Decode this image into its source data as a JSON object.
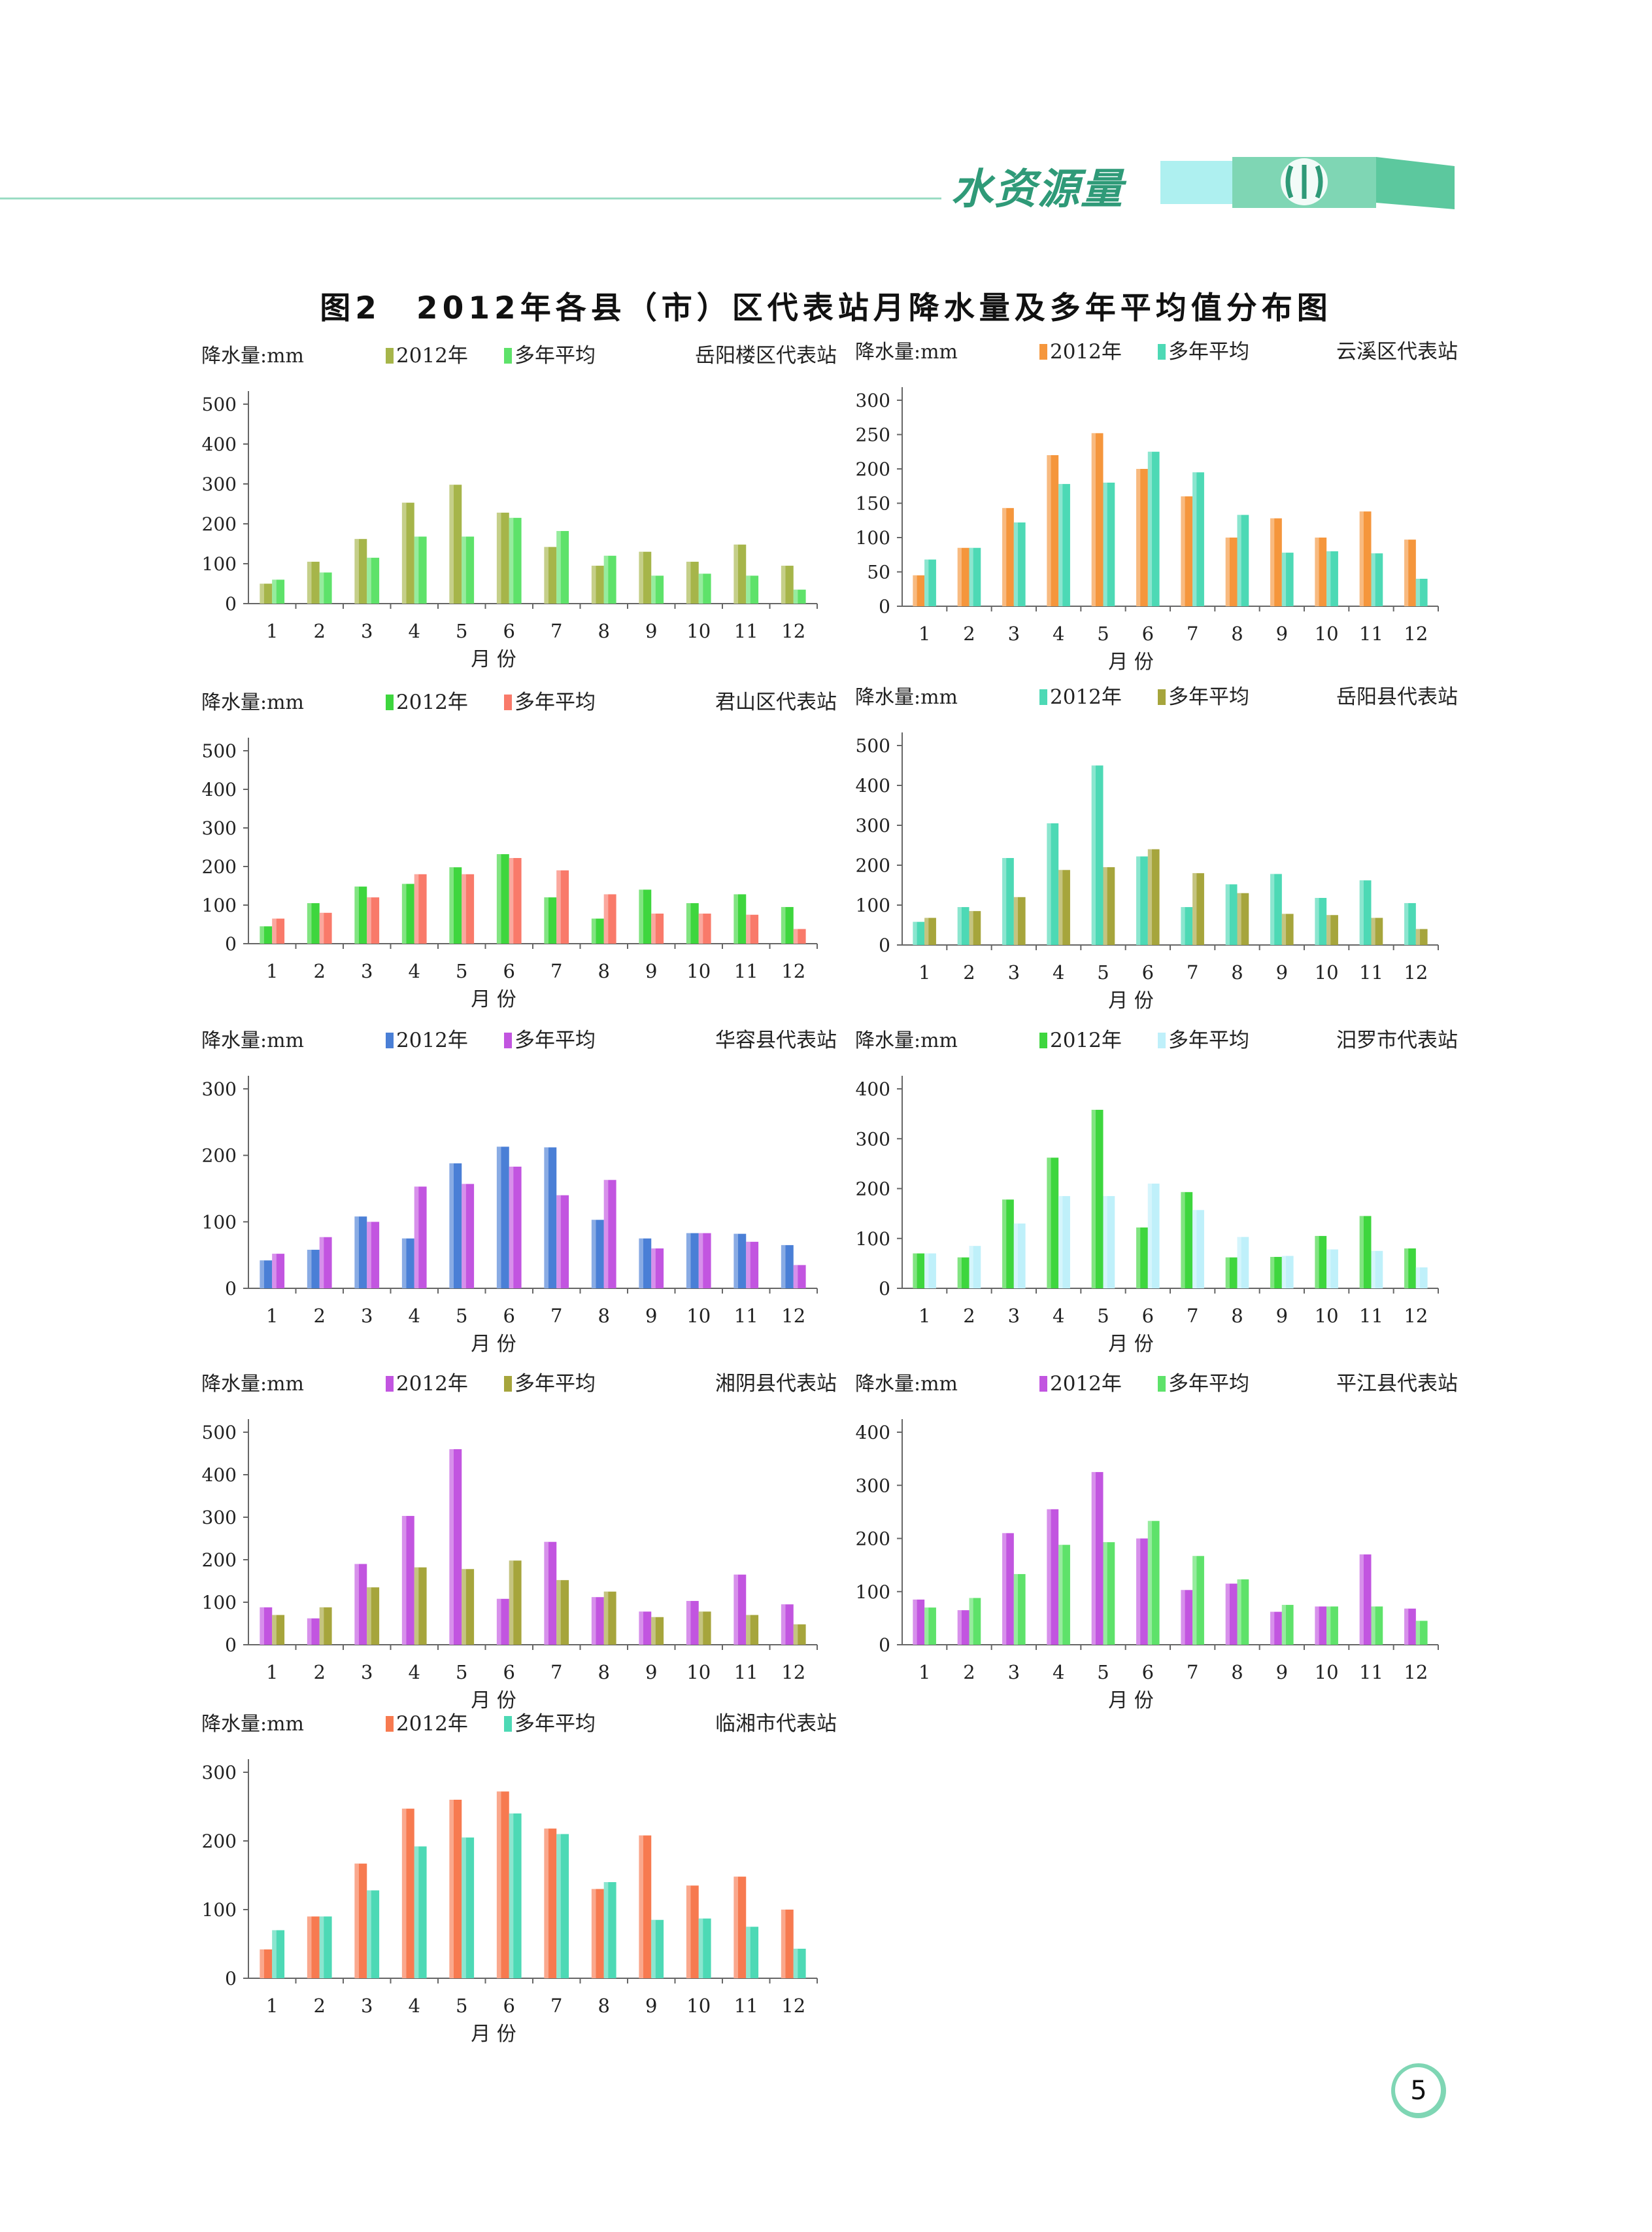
{
  "header": {
    "section_title": "水资源量"
  },
  "figure_title": "图2　2012年各县（市）区代表站月降水量及多年平均值分布图",
  "page_number": "5",
  "colors": {
    "header_accent": "#2f9a78",
    "header_band": "#7fd6b4",
    "header_band_light": "#aef0f0"
  },
  "chart_data": [
    {
      "type": "bar",
      "title": "岳阳楼区代表站",
      "ylabel": "降水量:mm",
      "xlabel": "月 份",
      "categories": [
        "1",
        "2",
        "3",
        "4",
        "5",
        "6",
        "7",
        "8",
        "9",
        "10",
        "11",
        "12"
      ],
      "ylim": [
        0,
        500
      ],
      "yticks": [
        0,
        100,
        200,
        300,
        400,
        500
      ],
      "legend_position": "top",
      "series": [
        {
          "name": "2012年",
          "color": "#a6b54a",
          "values": [
            50,
            105,
            162,
            253,
            298,
            228,
            142,
            95,
            130,
            105,
            148,
            95
          ]
        },
        {
          "name": "多年平均",
          "color": "#5ee26a",
          "values": [
            60,
            78,
            115,
            168,
            168,
            215,
            182,
            120,
            70,
            75,
            70,
            35
          ]
        }
      ]
    },
    {
      "type": "bar",
      "title": "云溪区代表站",
      "ylabel": "降水量:mm",
      "xlabel": "月 份",
      "categories": [
        "1",
        "2",
        "3",
        "4",
        "5",
        "6",
        "7",
        "8",
        "9",
        "10",
        "11",
        "12"
      ],
      "ylim": [
        0,
        300
      ],
      "yticks": [
        0,
        50,
        100,
        150,
        200,
        250,
        300
      ],
      "legend_position": "top",
      "series": [
        {
          "name": "2012年",
          "color": "#f5963c",
          "values": [
            45,
            85,
            143,
            220,
            252,
            200,
            160,
            100,
            128,
            100,
            138,
            97
          ]
        },
        {
          "name": "多年平均",
          "color": "#4dd9b5",
          "values": [
            68,
            85,
            122,
            178,
            180,
            225,
            195,
            133,
            78,
            80,
            77,
            40
          ]
        }
      ]
    },
    {
      "type": "bar",
      "title": "君山区代表站",
      "ylabel": "降水量:mm",
      "xlabel": "月 份",
      "categories": [
        "1",
        "2",
        "3",
        "4",
        "5",
        "6",
        "7",
        "8",
        "9",
        "10",
        "11",
        "12"
      ],
      "ylim": [
        0,
        500
      ],
      "yticks": [
        0,
        100,
        200,
        300,
        400,
        500
      ],
      "legend_position": "top",
      "series": [
        {
          "name": "2012年",
          "color": "#3ed63e",
          "values": [
            45,
            105,
            148,
            155,
            198,
            232,
            120,
            65,
            140,
            105,
            128,
            95
          ]
        },
        {
          "name": "多年平均",
          "color": "#f97a6a",
          "values": [
            65,
            80,
            120,
            180,
            180,
            222,
            190,
            128,
            78,
            78,
            75,
            38
          ]
        }
      ]
    },
    {
      "type": "bar",
      "title": "岳阳县代表站",
      "ylabel": "降水量:mm",
      "xlabel": "月 份",
      "categories": [
        "1",
        "2",
        "3",
        "4",
        "5",
        "6",
        "7",
        "8",
        "9",
        "10",
        "11",
        "12"
      ],
      "ylim": [
        0,
        500
      ],
      "yticks": [
        0,
        100,
        200,
        300,
        400,
        500
      ],
      "legend_position": "top",
      "series": [
        {
          "name": "2012年",
          "color": "#4dd9b5",
          "values": [
            58,
            95,
            218,
            305,
            450,
            222,
            95,
            152,
            178,
            118,
            162,
            105
          ]
        },
        {
          "name": "多年平均",
          "color": "#a6a53c",
          "values": [
            68,
            85,
            120,
            188,
            195,
            240,
            180,
            130,
            78,
            75,
            68,
            40
          ]
        }
      ]
    },
    {
      "type": "bar",
      "title": "华容县代表站",
      "ylabel": "降水量:mm",
      "xlabel": "月 份",
      "categories": [
        "1",
        "2",
        "3",
        "4",
        "5",
        "6",
        "7",
        "8",
        "9",
        "10",
        "11",
        "12"
      ],
      "ylim": [
        0,
        300
      ],
      "yticks": [
        0,
        100,
        200,
        300
      ],
      "legend_position": "top",
      "series": [
        {
          "name": "2012年",
          "color": "#4a7fd6",
          "values": [
            42,
            58,
            108,
            75,
            188,
            213,
            212,
            103,
            75,
            83,
            82,
            65
          ]
        },
        {
          "name": "多年平均",
          "color": "#c255e0",
          "values": [
            52,
            77,
            100,
            153,
            157,
            183,
            140,
            163,
            60,
            83,
            70,
            35
          ]
        }
      ]
    },
    {
      "type": "bar",
      "title": "汨罗市代表站",
      "ylabel": "降水量:mm",
      "xlabel": "月 份",
      "categories": [
        "1",
        "2",
        "3",
        "4",
        "5",
        "6",
        "7",
        "8",
        "9",
        "10",
        "11",
        "12"
      ],
      "ylim": [
        0,
        400
      ],
      "yticks": [
        0,
        100,
        200,
        300,
        400
      ],
      "legend_position": "top",
      "series": [
        {
          "name": "2012年",
          "color": "#3ed63e",
          "values": [
            70,
            62,
            178,
            262,
            358,
            122,
            193,
            62,
            63,
            105,
            145,
            80
          ]
        },
        {
          "name": "多年平均",
          "color": "#bff0fa",
          "values": [
            70,
            85,
            130,
            185,
            185,
            210,
            157,
            103,
            65,
            78,
            75,
            42
          ]
        }
      ]
    },
    {
      "type": "bar",
      "title": "湘阴县代表站",
      "ylabel": "降水量:mm",
      "xlabel": "月 份",
      "categories": [
        "1",
        "2",
        "3",
        "4",
        "5",
        "6",
        "7",
        "8",
        "9",
        "10",
        "11",
        "12"
      ],
      "ylim": [
        0,
        500
      ],
      "yticks": [
        0,
        100,
        200,
        300,
        400,
        500
      ],
      "legend_position": "top",
      "series": [
        {
          "name": "2012年",
          "color": "#c255e0",
          "values": [
            88,
            62,
            190,
            303,
            460,
            108,
            242,
            112,
            78,
            103,
            165,
            95
          ]
        },
        {
          "name": "多年平均",
          "color": "#a6a53c",
          "values": [
            70,
            88,
            135,
            182,
            178,
            198,
            152,
            125,
            65,
            78,
            70,
            48
          ]
        }
      ]
    },
    {
      "type": "bar",
      "title": "平江县代表站",
      "ylabel": "降水量:mm",
      "xlabel": "月 份",
      "categories": [
        "1",
        "2",
        "3",
        "4",
        "5",
        "6",
        "7",
        "8",
        "9",
        "10",
        "11",
        "12"
      ],
      "ylim": [
        0,
        400
      ],
      "yticks": [
        0,
        100,
        200,
        300,
        400
      ],
      "legend_position": "top",
      "series": [
        {
          "name": "2012年",
          "color": "#c255e0",
          "values": [
            85,
            65,
            210,
            255,
            325,
            200,
            103,
            115,
            62,
            72,
            170,
            68
          ]
        },
        {
          "name": "多年平均",
          "color": "#5ee26a",
          "values": [
            70,
            88,
            133,
            188,
            193,
            233,
            167,
            123,
            75,
            72,
            72,
            45
          ]
        }
      ]
    },
    {
      "type": "bar",
      "title": "临湘市代表站",
      "ylabel": "降水量:mm",
      "xlabel": "月 份",
      "categories": [
        "1",
        "2",
        "3",
        "4",
        "5",
        "6",
        "7",
        "8",
        "9",
        "10",
        "11",
        "12"
      ],
      "ylim": [
        0,
        300
      ],
      "yticks": [
        0,
        100,
        200,
        300
      ],
      "legend_position": "top",
      "series": [
        {
          "name": "2012年",
          "color": "#f77a50",
          "values": [
            42,
            90,
            167,
            247,
            260,
            272,
            218,
            130,
            208,
            135,
            148,
            100
          ]
        },
        {
          "name": "多年平均",
          "color": "#4dd9b5",
          "values": [
            70,
            90,
            128,
            192,
            205,
            240,
            210,
            140,
            85,
            87,
            75,
            43
          ]
        }
      ]
    }
  ]
}
